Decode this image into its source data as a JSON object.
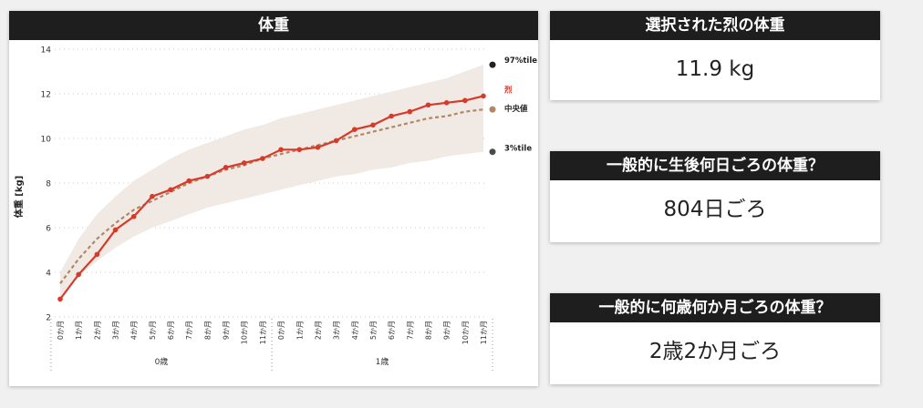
{
  "chart_panel": {
    "title": "体重"
  },
  "cards": [
    {
      "title": "選択された烈の体重",
      "value": "11.9 kg"
    },
    {
      "title": "一般的に生後何日ごろの体重？",
      "value": "804日ごろ"
    },
    {
      "title": "一般的に何歳何か月ごろの体重？",
      "value": "2歳2か月ごろ"
    }
  ],
  "colors": {
    "header_bg": "#1e1e1e",
    "actual_line": "#d63a2a",
    "median_line": "#b08868",
    "band_fill": "#f1e9e4",
    "p97_dot": "#222222",
    "p3_dot": "#4a4a4a"
  },
  "chart_data": {
    "type": "line",
    "title": "体重",
    "ylabel": "体重 [kg]",
    "xlabel": "",
    "ylim": [
      2,
      14
    ],
    "yticks": [
      2,
      4,
      6,
      8,
      10,
      12,
      14
    ],
    "grid": "horizontal-dotted",
    "legend_placement": "right",
    "categories": [
      "0か月",
      "1か月",
      "2か月",
      "3か月",
      "4か月",
      "5か月",
      "6か月",
      "7か月",
      "8か月",
      "9か月",
      "10か月",
      "11か月",
      "0か月",
      "1か月",
      "2か月",
      "3か月",
      "4か月",
      "5か月",
      "6か月",
      "7か月",
      "8か月",
      "9か月",
      "10か月",
      "11か月"
    ],
    "age_groups": [
      {
        "label": "0歳",
        "from": 0,
        "to": 11
      },
      {
        "label": "1歳",
        "from": 12,
        "to": 23
      }
    ],
    "series": [
      {
        "name": "烈",
        "values": [
          2.8,
          3.9,
          4.8,
          5.9,
          6.5,
          7.4,
          7.7,
          8.1,
          8.3,
          8.7,
          8.9,
          9.1,
          9.5,
          9.5,
          9.6,
          9.9,
          10.4,
          10.6,
          11.0,
          11.2,
          11.5,
          11.6,
          11.7,
          11.9
        ],
        "color": "#d63a2a",
        "style": "solid"
      },
      {
        "name": "中央値",
        "values": [
          3.5,
          4.6,
          5.5,
          6.2,
          6.8,
          7.2,
          7.6,
          8.0,
          8.3,
          8.6,
          8.8,
          9.1,
          9.3,
          9.5,
          9.7,
          9.9,
          10.1,
          10.3,
          10.5,
          10.7,
          10.9,
          11.0,
          11.2,
          11.3
        ],
        "color": "#b08868",
        "style": "dashed"
      },
      {
        "name": "97%tile",
        "values": [
          4.0,
          5.5,
          6.6,
          7.4,
          8.1,
          8.6,
          9.1,
          9.5,
          9.8,
          10.1,
          10.4,
          10.6,
          10.9,
          11.1,
          11.3,
          11.5,
          11.7,
          11.9,
          12.1,
          12.3,
          12.5,
          12.7,
          13.0,
          13.3
        ]
      },
      {
        "name": "3%tile",
        "values": [
          2.9,
          3.8,
          4.5,
          5.1,
          5.6,
          6.0,
          6.3,
          6.6,
          6.9,
          7.1,
          7.3,
          7.5,
          7.7,
          7.9,
          8.1,
          8.3,
          8.4,
          8.6,
          8.7,
          8.9,
          9.0,
          9.2,
          9.3,
          9.4
        ]
      }
    ],
    "end_labels": [
      "97%tile",
      "烈",
      "中央値",
      "3%tile"
    ]
  }
}
